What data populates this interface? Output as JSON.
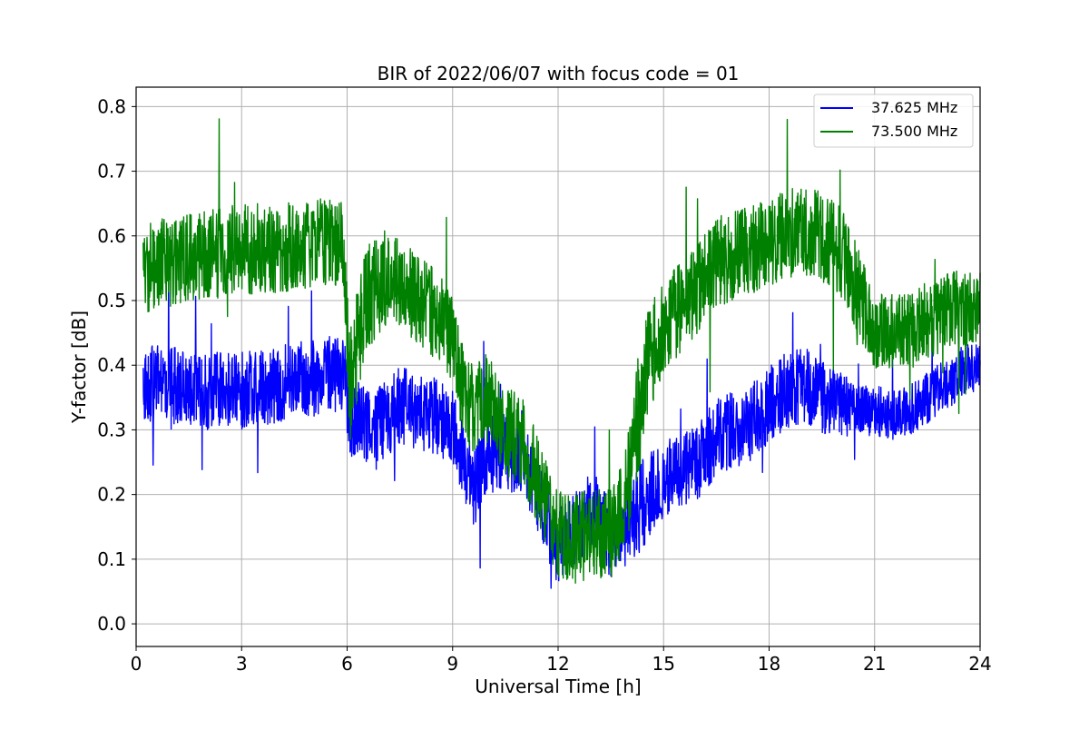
{
  "chart_data": {
    "type": "line",
    "title": "BIR of 2022/06/07 with focus code = 01",
    "xlabel": "Universal Time [h]",
    "ylabel": "Y-factor [dB]",
    "xlim": [
      0,
      24
    ],
    "ylim": [
      -0.035,
      0.83
    ],
    "xticks": [
      0,
      3,
      6,
      9,
      12,
      15,
      18,
      21,
      24
    ],
    "yticks": [
      0.0,
      0.1,
      0.2,
      0.3,
      0.4,
      0.5,
      0.6,
      0.7,
      0.8
    ],
    "grid": true,
    "legend_position": "top-right",
    "series": [
      {
        "name": "37.625 MHz",
        "color": "#0000ff",
        "x": [
          0.2,
          1,
          2,
          3,
          4,
          5,
          5.5,
          5.9,
          6.0,
          6.1,
          6.5,
          7,
          7.5,
          8,
          8.5,
          9,
          9.3,
          9.6,
          10,
          10.5,
          11,
          11.5,
          12,
          12.5,
          13,
          13.5,
          14,
          14.3,
          14.6,
          15,
          15.5,
          16,
          16.5,
          17,
          17.5,
          18,
          18.5,
          19,
          19.5,
          20,
          20.5,
          21,
          21.5,
          22,
          22.5,
          23,
          23.5,
          24
        ],
        "values": [
          0.37,
          0.37,
          0.36,
          0.36,
          0.37,
          0.38,
          0.39,
          0.38,
          0.35,
          0.32,
          0.31,
          0.31,
          0.34,
          0.33,
          0.32,
          0.31,
          0.25,
          0.21,
          0.26,
          0.27,
          0.25,
          0.19,
          0.12,
          0.15,
          0.18,
          0.13,
          0.15,
          0.18,
          0.2,
          0.22,
          0.24,
          0.25,
          0.29,
          0.3,
          0.31,
          0.34,
          0.36,
          0.37,
          0.35,
          0.34,
          0.33,
          0.33,
          0.32,
          0.33,
          0.35,
          0.37,
          0.39,
          0.4
        ],
        "spread": [
          0.06,
          0.06,
          0.06,
          0.06,
          0.06,
          0.06,
          0.06,
          0.06,
          0.07,
          0.07,
          0.06,
          0.06,
          0.06,
          0.06,
          0.06,
          0.06,
          0.06,
          0.06,
          0.06,
          0.06,
          0.06,
          0.06,
          0.06,
          0.06,
          0.06,
          0.06,
          0.06,
          0.07,
          0.07,
          0.06,
          0.06,
          0.06,
          0.06,
          0.06,
          0.06,
          0.06,
          0.06,
          0.06,
          0.06,
          0.05,
          0.04,
          0.04,
          0.04,
          0.04,
          0.04,
          0.04,
          0.04,
          0.04
        ]
      },
      {
        "name": "73.500 MHz",
        "color": "#008000",
        "x": [
          0.2,
          1,
          2,
          3,
          4,
          5,
          5.5,
          5.9,
          6.0,
          6.1,
          6.5,
          7,
          7.5,
          8,
          8.5,
          9,
          9.3,
          9.6,
          10,
          10.5,
          11,
          11.5,
          12,
          12.5,
          13,
          13.5,
          14,
          14.3,
          14.6,
          15,
          15.5,
          16,
          16.5,
          17,
          17.5,
          18,
          18.5,
          19,
          19.5,
          20,
          20.5,
          21,
          21.5,
          22,
          22.5,
          23,
          23.5,
          24
        ],
        "values": [
          0.55,
          0.56,
          0.57,
          0.58,
          0.58,
          0.59,
          0.59,
          0.58,
          0.45,
          0.38,
          0.5,
          0.53,
          0.53,
          0.5,
          0.48,
          0.44,
          0.36,
          0.33,
          0.35,
          0.3,
          0.28,
          0.21,
          0.14,
          0.13,
          0.14,
          0.14,
          0.21,
          0.33,
          0.41,
          0.46,
          0.49,
          0.52,
          0.56,
          0.57,
          0.58,
          0.59,
          0.6,
          0.61,
          0.6,
          0.58,
          0.52,
          0.45,
          0.45,
          0.45,
          0.47,
          0.48,
          0.49,
          0.49
        ],
        "spread": [
          0.07,
          0.07,
          0.07,
          0.07,
          0.07,
          0.07,
          0.07,
          0.07,
          0.1,
          0.1,
          0.08,
          0.08,
          0.07,
          0.07,
          0.07,
          0.07,
          0.07,
          0.07,
          0.07,
          0.07,
          0.07,
          0.07,
          0.07,
          0.07,
          0.07,
          0.07,
          0.08,
          0.1,
          0.09,
          0.07,
          0.07,
          0.07,
          0.07,
          0.07,
          0.07,
          0.07,
          0.07,
          0.07,
          0.07,
          0.07,
          0.07,
          0.06,
          0.06,
          0.06,
          0.06,
          0.06,
          0.06,
          0.06
        ]
      }
    ]
  }
}
